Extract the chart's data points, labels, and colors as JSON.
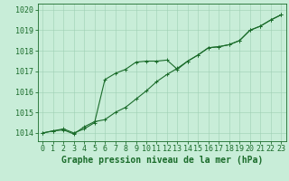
{
  "xlabel": "Graphe pression niveau de la mer (hPa)",
  "background_color": "#c8edd8",
  "grid_color": "#9ecfb4",
  "line_color": "#1a6b2a",
  "x_ticks": [
    0,
    1,
    2,
    3,
    4,
    5,
    6,
    7,
    8,
    9,
    10,
    11,
    12,
    13,
    14,
    15,
    16,
    17,
    18,
    19,
    20,
    21,
    22,
    23
  ],
  "ylim": [
    1013.6,
    1020.3
  ],
  "xlim": [
    -0.5,
    23.5
  ],
  "yticks": [
    1014,
    1015,
    1016,
    1017,
    1018,
    1019,
    1020
  ],
  "line1_x": [
    0,
    1,
    2,
    3,
    4,
    5,
    6,
    7,
    8,
    9,
    10,
    11,
    12,
    13,
    14,
    15,
    16,
    17,
    18,
    19,
    20,
    21,
    22,
    23
  ],
  "line1_y": [
    1014.0,
    1014.1,
    1014.2,
    1014.0,
    1014.2,
    1014.5,
    1016.6,
    1016.9,
    1017.1,
    1017.45,
    1017.5,
    1017.5,
    1017.55,
    1017.1,
    1017.5,
    1017.8,
    1018.15,
    1018.2,
    1018.3,
    1018.5,
    1019.0,
    1019.2,
    1019.5,
    1019.75
  ],
  "line2_x": [
    0,
    1,
    2,
    3,
    4,
    5,
    6,
    7,
    8,
    9,
    10,
    11,
    12,
    13,
    14,
    15,
    16,
    17,
    18,
    19,
    20,
    21,
    22,
    23
  ],
  "line2_y": [
    1014.0,
    1014.1,
    1014.15,
    1013.95,
    1014.3,
    1014.55,
    1014.65,
    1015.0,
    1015.25,
    1015.65,
    1016.05,
    1016.5,
    1016.85,
    1017.15,
    1017.5,
    1017.8,
    1018.15,
    1018.2,
    1018.3,
    1018.5,
    1019.0,
    1019.2,
    1019.5,
    1019.75
  ],
  "marker": "+",
  "markersize": 3.5,
  "linewidth": 0.8,
  "xlabel_fontsize": 7,
  "tick_fontsize": 6
}
